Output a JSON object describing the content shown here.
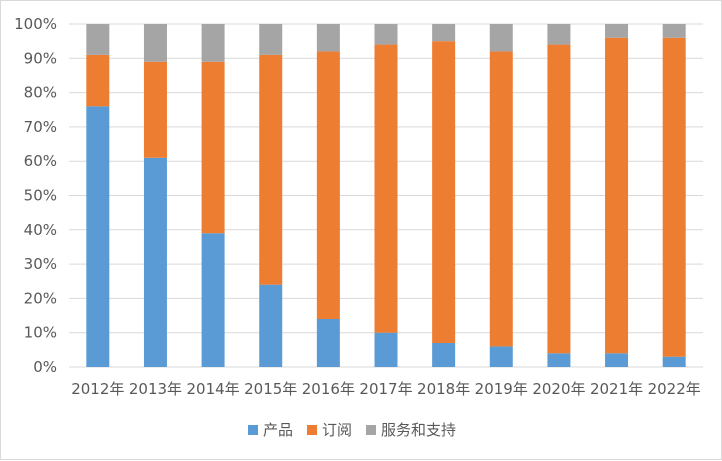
{
  "chart_data": {
    "type": "bar",
    "stacked": "percent",
    "categories": [
      "2012年",
      "2013年",
      "2014年",
      "2015年",
      "2016年",
      "2017年",
      "2018年",
      "2019年",
      "2020年",
      "2021年",
      "2022年"
    ],
    "series": [
      {
        "name": "产品",
        "color": "#5b9bd5",
        "values": [
          76,
          61,
          39,
          24,
          14,
          10,
          7,
          6,
          4,
          4,
          3
        ]
      },
      {
        "name": "订阅",
        "color": "#ed7d31",
        "values": [
          15,
          28,
          50,
          67,
          78,
          84,
          88,
          86,
          90,
          92,
          93
        ]
      },
      {
        "name": "服务和支持",
        "color": "#a5a5a5",
        "values": [
          9,
          11,
          11,
          9,
          8,
          6,
          5,
          8,
          6,
          4,
          4
        ]
      }
    ],
    "ylim": [
      0,
      100
    ],
    "yticks": [
      "0%",
      "10%",
      "20%",
      "30%",
      "40%",
      "50%",
      "60%",
      "70%",
      "80%",
      "90%",
      "100%"
    ],
    "grid": true,
    "legend_position": "bottom"
  }
}
